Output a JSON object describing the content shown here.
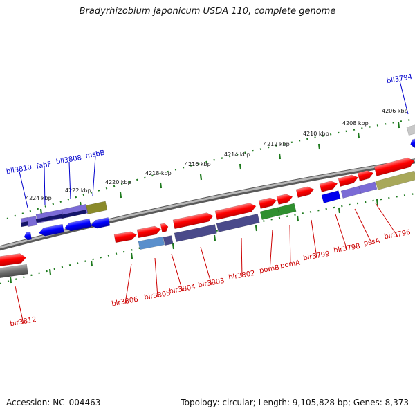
{
  "title": "Bradyrhizobium japonicum USDA 110, complete genome",
  "accession": "Accession: NC_004463",
  "topology": "Topology: circular; Length: 9,105,828 bp; Genes: 8,373",
  "colors": {
    "forward_label": "#cc0000",
    "reverse_label": "#0000cc",
    "backbone": "#888888",
    "tick": "#1e7a1e"
  },
  "ruler_ticks": [
    "4206 kbp",
    "4208 kbp",
    "4210 kbp",
    "4212 kbp",
    "4214 kbp",
    "4216 kbp",
    "4218 kbp",
    "4220 kbp",
    "4222 kbp",
    "4224 kbp"
  ],
  "reverse_genes": [
    "bll3794",
    "msbB",
    "bll3808",
    "fabF",
    "bll3810"
  ],
  "forward_genes": [
    "blr3796",
    "pssA",
    "blr3798",
    "blr3799",
    "pomA",
    "pomB",
    "blr3802",
    "blr3803",
    "blr3804",
    "blr3805",
    "blr3806",
    "blr3812"
  ]
}
